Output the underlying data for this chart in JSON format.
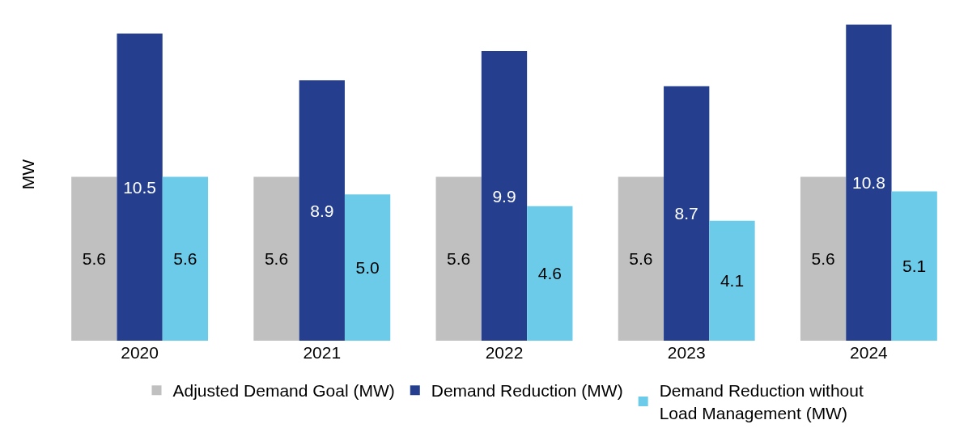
{
  "chart_data": {
    "type": "bar",
    "ylabel": "MW",
    "categories": [
      "2020",
      "2021",
      "2022",
      "2023",
      "2024"
    ],
    "series": [
      {
        "name": "Adjusted Demand Goal (MW)",
        "color": "#c0c0c0",
        "values": [
          5.6,
          5.6,
          5.6,
          5.6,
          5.6
        ],
        "value_labels": [
          "5.6",
          "5.6",
          "5.6",
          "5.6",
          "5.6"
        ]
      },
      {
        "name": "Demand Reduction (MW)",
        "color": "#253f8e",
        "values": [
          10.5,
          8.9,
          9.9,
          8.7,
          10.8
        ],
        "value_labels": [
          "10.5",
          "8.9",
          "9.9",
          "8.7",
          "10.8"
        ]
      },
      {
        "name": "Demand Reduction without Load Management (MW)",
        "color": "#6dcbea",
        "values": [
          5.6,
          5.0,
          4.6,
          4.1,
          5.1
        ],
        "value_labels": [
          "5.6",
          "5.0",
          "4.6",
          "4.1",
          "5.1"
        ]
      }
    ],
    "grid": false,
    "legend": "bottom"
  }
}
